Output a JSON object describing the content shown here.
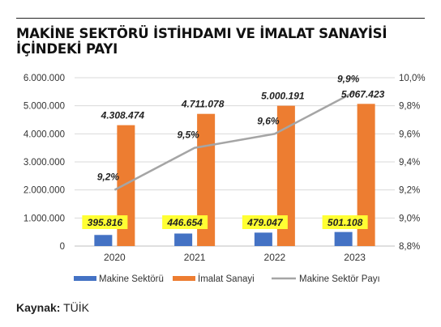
{
  "title_line1": "MAKİNE SEKTÖRÜ İSTİHDAMI VE İMALAT SANAYİSİ",
  "title_line2": "İÇİNDEKİ PAYI",
  "source_label": "Kaynak:",
  "source_value": "TÜİK",
  "chart_data": {
    "type": "bar",
    "categories": [
      "2020",
      "2021",
      "2022",
      "2023"
    ],
    "series": [
      {
        "name": "Makine Sektörü",
        "type": "bar",
        "axis": "left",
        "color": "#4472c4",
        "values": [
          395816,
          446654,
          479047,
          501108
        ],
        "labels": [
          "395.816",
          "446.654",
          "479.047",
          "501.108"
        ]
      },
      {
        "name": "İmalat Sanayi",
        "type": "bar",
        "axis": "left",
        "color": "#ed7d31",
        "values": [
          4308474,
          4711078,
          5000191,
          5067423
        ],
        "labels": [
          "4.308.474",
          "4.711.078",
          "5.000.191",
          "5.067.423"
        ]
      },
      {
        "name": "Makine Sektör Payı",
        "type": "line",
        "axis": "right",
        "color": "#a5a5a5",
        "values": [
          9.2,
          9.5,
          9.6,
          9.9
        ],
        "labels": [
          "9,2%",
          "9,5%",
          "9,6%",
          "9,9%"
        ]
      }
    ],
    "y_left": {
      "min": 0,
      "max": 6000000,
      "ticks": [
        0,
        1000000,
        2000000,
        3000000,
        4000000,
        5000000,
        6000000
      ],
      "tick_labels": [
        "0",
        "1.000.000",
        "2.000.000",
        "3.000.000",
        "4.000.000",
        "5.000.000",
        "6.000.000"
      ]
    },
    "y_right": {
      "min": 8.8,
      "max": 10.0,
      "ticks": [
        8.8,
        9.0,
        9.2,
        9.4,
        9.6,
        9.8,
        10.0
      ],
      "tick_labels": [
        "8,8%",
        "9,0%",
        "9,2%",
        "9,4%",
        "9,6%",
        "9,8%",
        "10,0%"
      ]
    },
    "grid": true,
    "legend_position": "bottom",
    "label_highlight_color": "#ffff33"
  }
}
